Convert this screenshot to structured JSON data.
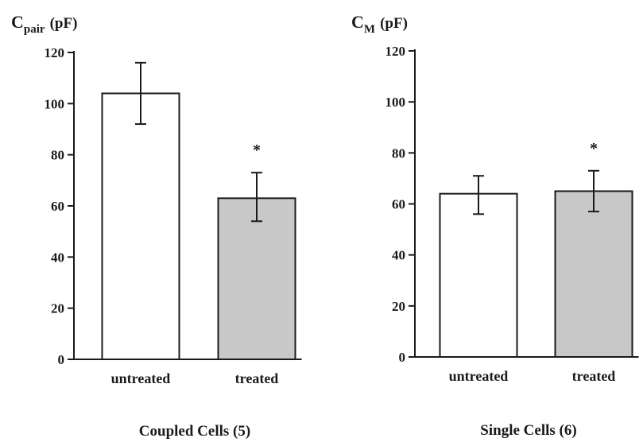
{
  "colors": {
    "ink": "#1a1a1a",
    "untreated_fill": "#ffffff",
    "treated_fill": "#c8c8c8"
  },
  "chart_data": [
    {
      "type": "bar",
      "ylabel_main": "C",
      "ylabel_sub": "pair",
      "ylabel_unit": "(pF)",
      "xlabel": "Coupled Cells (5)",
      "categories": [
        "untreated",
        "treated"
      ],
      "values": [
        104,
        63
      ],
      "error_upper": [
        116,
        73
      ],
      "error_lower": [
        92,
        54
      ],
      "annotations": [
        "",
        "*"
      ],
      "ylim": [
        0,
        120
      ],
      "yticks": [
        "0",
        "20",
        "40",
        "60",
        "80",
        "100",
        "120"
      ],
      "grid": false
    },
    {
      "type": "bar",
      "ylabel_main": "C",
      "ylabel_sub": "M",
      "ylabel_unit": "(pF)",
      "xlabel": "Single Cells (6)",
      "categories": [
        "untreated",
        "treated"
      ],
      "values": [
        64,
        65
      ],
      "error_upper": [
        71,
        73
      ],
      "error_lower": [
        56,
        57
      ],
      "annotations": [
        "",
        "*"
      ],
      "ylim": [
        0,
        120
      ],
      "yticks": [
        "0",
        "20",
        "40",
        "60",
        "80",
        "100",
        "120"
      ],
      "grid": false
    }
  ]
}
